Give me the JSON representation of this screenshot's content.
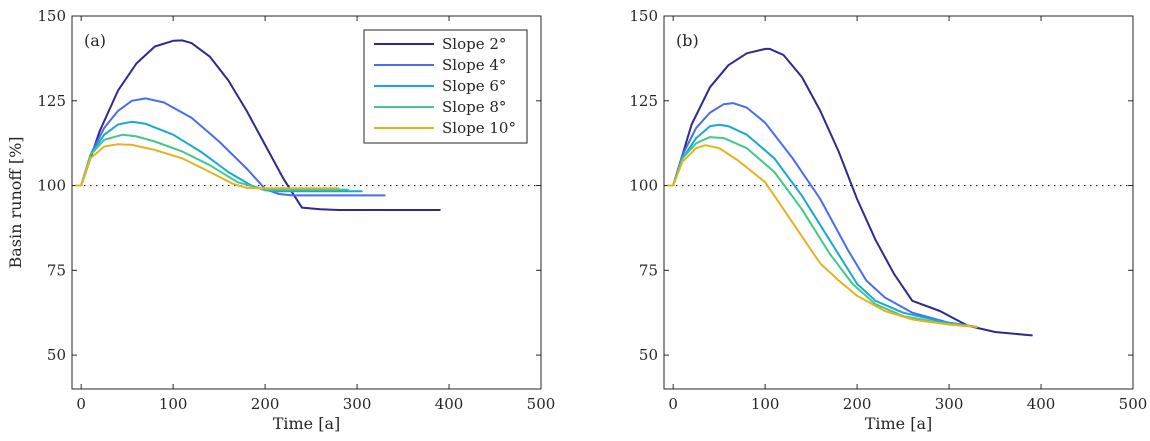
{
  "chart_data": [
    {
      "type": "line",
      "panel_label": "(a)",
      "xlabel": "Time [a]",
      "ylabel": "Basin runoff [%]",
      "xlim": [
        -10,
        500
      ],
      "ylim": [
        40,
        150
      ],
      "xticks": [
        0,
        100,
        200,
        300,
        400,
        500
      ],
      "yticks": [
        50,
        75,
        100,
        125,
        150
      ],
      "reference_line": {
        "y": 100,
        "style": "dotted"
      },
      "legend": {
        "placement": "top-right"
      },
      "series": [
        {
          "name": "Slope 2°",
          "color": "#2e2a8f",
          "x": [
            -5,
            0,
            20,
            40,
            60,
            80,
            100,
            110,
            120,
            140,
            160,
            180,
            200,
            220,
            240,
            260,
            280,
            290,
            390
          ],
          "y": [
            100,
            100,
            116,
            128,
            136,
            141,
            142.7,
            142.8,
            142,
            138,
            131,
            122,
            112,
            102,
            93.5,
            93,
            92.8,
            92.8,
            92.8
          ]
        },
        {
          "name": "Slope 4°",
          "color": "#4a6cf0",
          "x": [
            -5,
            0,
            10,
            25,
            40,
            55,
            70,
            90,
            120,
            150,
            180,
            200,
            215,
            230,
            330
          ],
          "y": [
            100,
            100,
            109,
            117,
            122,
            125,
            125.7,
            124.5,
            120,
            113,
            105,
            99,
            97.5,
            97.1,
            97.1
          ]
        },
        {
          "name": "Slope 6°",
          "color": "#1aa7d6",
          "x": [
            -5,
            0,
            10,
            25,
            40,
            55,
            70,
            100,
            130,
            160,
            185,
            200,
            210,
            305
          ],
          "y": [
            100,
            100,
            109,
            115,
            118,
            118.8,
            118.2,
            115,
            110,
            104,
            100,
            98.6,
            98.3,
            98.3
          ]
        },
        {
          "name": "Slope 8°",
          "color": "#3fc98a",
          "x": [
            -5,
            0,
            10,
            25,
            45,
            60,
            80,
            110,
            140,
            170,
            190,
            200,
            290
          ],
          "y": [
            100,
            100,
            109,
            113.5,
            115,
            114.5,
            113,
            110,
            106,
            101,
            99.5,
            98.8,
            98.8
          ]
        },
        {
          "name": "Slope 10°",
          "color": "#e8b21e",
          "x": [
            -5,
            0,
            10,
            25,
            40,
            55,
            80,
            110,
            140,
            165,
            180,
            195,
            280
          ],
          "y": [
            100,
            100,
            108,
            111.5,
            112.2,
            112,
            110.5,
            108,
            104,
            100.5,
            99.3,
            99.2,
            99.2
          ]
        }
      ]
    },
    {
      "type": "line",
      "panel_label": "(b)",
      "xlabel": "Time [a]",
      "ylabel": "",
      "xlim": [
        -10,
        500
      ],
      "ylim": [
        40,
        150
      ],
      "xticks": [
        0,
        100,
        200,
        300,
        400,
        500
      ],
      "yticks": [
        50,
        75,
        100,
        125,
        150
      ],
      "reference_line": {
        "y": 100,
        "style": "dotted"
      },
      "series": [
        {
          "name": "Slope 2°",
          "color": "#2e2a8f",
          "x": [
            -5,
            0,
            20,
            40,
            60,
            80,
            100,
            105,
            120,
            140,
            160,
            180,
            200,
            220,
            240,
            260,
            290,
            320,
            350,
            390
          ],
          "y": [
            100,
            100,
            118,
            129,
            135.5,
            139,
            140.3,
            140.3,
            138.5,
            132,
            122,
            110,
            96,
            84,
            74,
            66,
            63,
            58.7,
            56.8,
            55.8
          ]
        },
        {
          "name": "Slope 4°",
          "color": "#4a6cf0",
          "x": [
            -5,
            0,
            10,
            25,
            40,
            55,
            65,
            80,
            100,
            130,
            160,
            190,
            210,
            230,
            260,
            300,
            330
          ],
          "y": [
            100,
            100,
            109,
            117,
            121.5,
            124,
            124.3,
            123,
            118.5,
            108,
            96,
            81,
            72,
            67,
            62.5,
            59.5,
            58.3
          ]
        },
        {
          "name": "Slope 6°",
          "color": "#1aa7d6",
          "x": [
            -5,
            0,
            10,
            25,
            40,
            50,
            60,
            80,
            110,
            140,
            170,
            200,
            220,
            250,
            290,
            330
          ],
          "y": [
            100,
            100,
            108,
            114,
            117.5,
            117.9,
            117.5,
            115,
            108,
            97,
            84,
            71,
            66,
            62.5,
            60,
            58.3
          ]
        },
        {
          "name": "Slope 8°",
          "color": "#3fc98a",
          "x": [
            -5,
            0,
            10,
            25,
            40,
            55,
            80,
            110,
            140,
            170,
            195,
            220,
            250,
            290,
            330
          ],
          "y": [
            100,
            100,
            108,
            112.5,
            114.3,
            114,
            111,
            104,
            93,
            80,
            71,
            65,
            61.5,
            59.5,
            58.3
          ]
        },
        {
          "name": "Slope 10°",
          "color": "#e8b21e",
          "x": [
            -5,
            0,
            10,
            25,
            35,
            50,
            70,
            100,
            130,
            160,
            180,
            200,
            230,
            260,
            300,
            330
          ],
          "y": [
            100,
            100,
            107,
            111,
            111.9,
            111,
            107.5,
            101,
            89,
            77,
            72,
            67.5,
            63,
            60.5,
            59,
            58.3
          ]
        }
      ]
    }
  ]
}
